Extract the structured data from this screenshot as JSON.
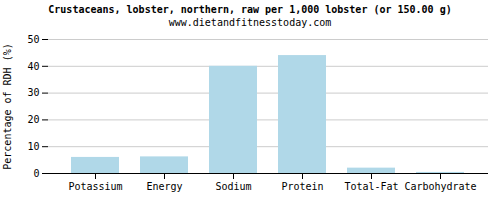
{
  "chart_data": {
    "type": "bar",
    "title": "Crustaceans, lobster, northern, raw per 1,000 lobster (or 150.00 g)",
    "subtitle": "www.dietandfitnesstoday.com",
    "categories": [
      "Potassium",
      "Energy",
      "Sodium",
      "Protein",
      "Total-Fat",
      "Carbohydrate"
    ],
    "values": [
      6.0,
      6.2,
      40.0,
      44.0,
      2.0,
      0.4
    ],
    "color": "#b0d8e8",
    "ylabel": "Percentage of RDH (%)",
    "ylim": [
      0,
      50
    ],
    "yticks": [
      0,
      10,
      20,
      30,
      40,
      50
    ],
    "grid": true
  }
}
